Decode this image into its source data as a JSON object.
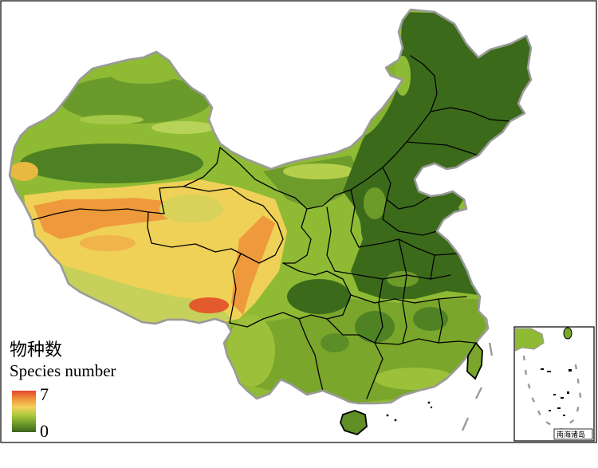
{
  "legend": {
    "title_cn": "物种数",
    "title_en": "Species number",
    "max_label": "7",
    "min_label": "0",
    "gradient": [
      "#e4452a",
      "#f0943a",
      "#f2d25a",
      "#a9c83c",
      "#6c9a2a",
      "#3a6419"
    ]
  },
  "inset": {
    "label": "南海诸岛"
  },
  "colors": {
    "national_border": "#9a9a9a",
    "province_border": "#000000",
    "frame": "#000000"
  }
}
